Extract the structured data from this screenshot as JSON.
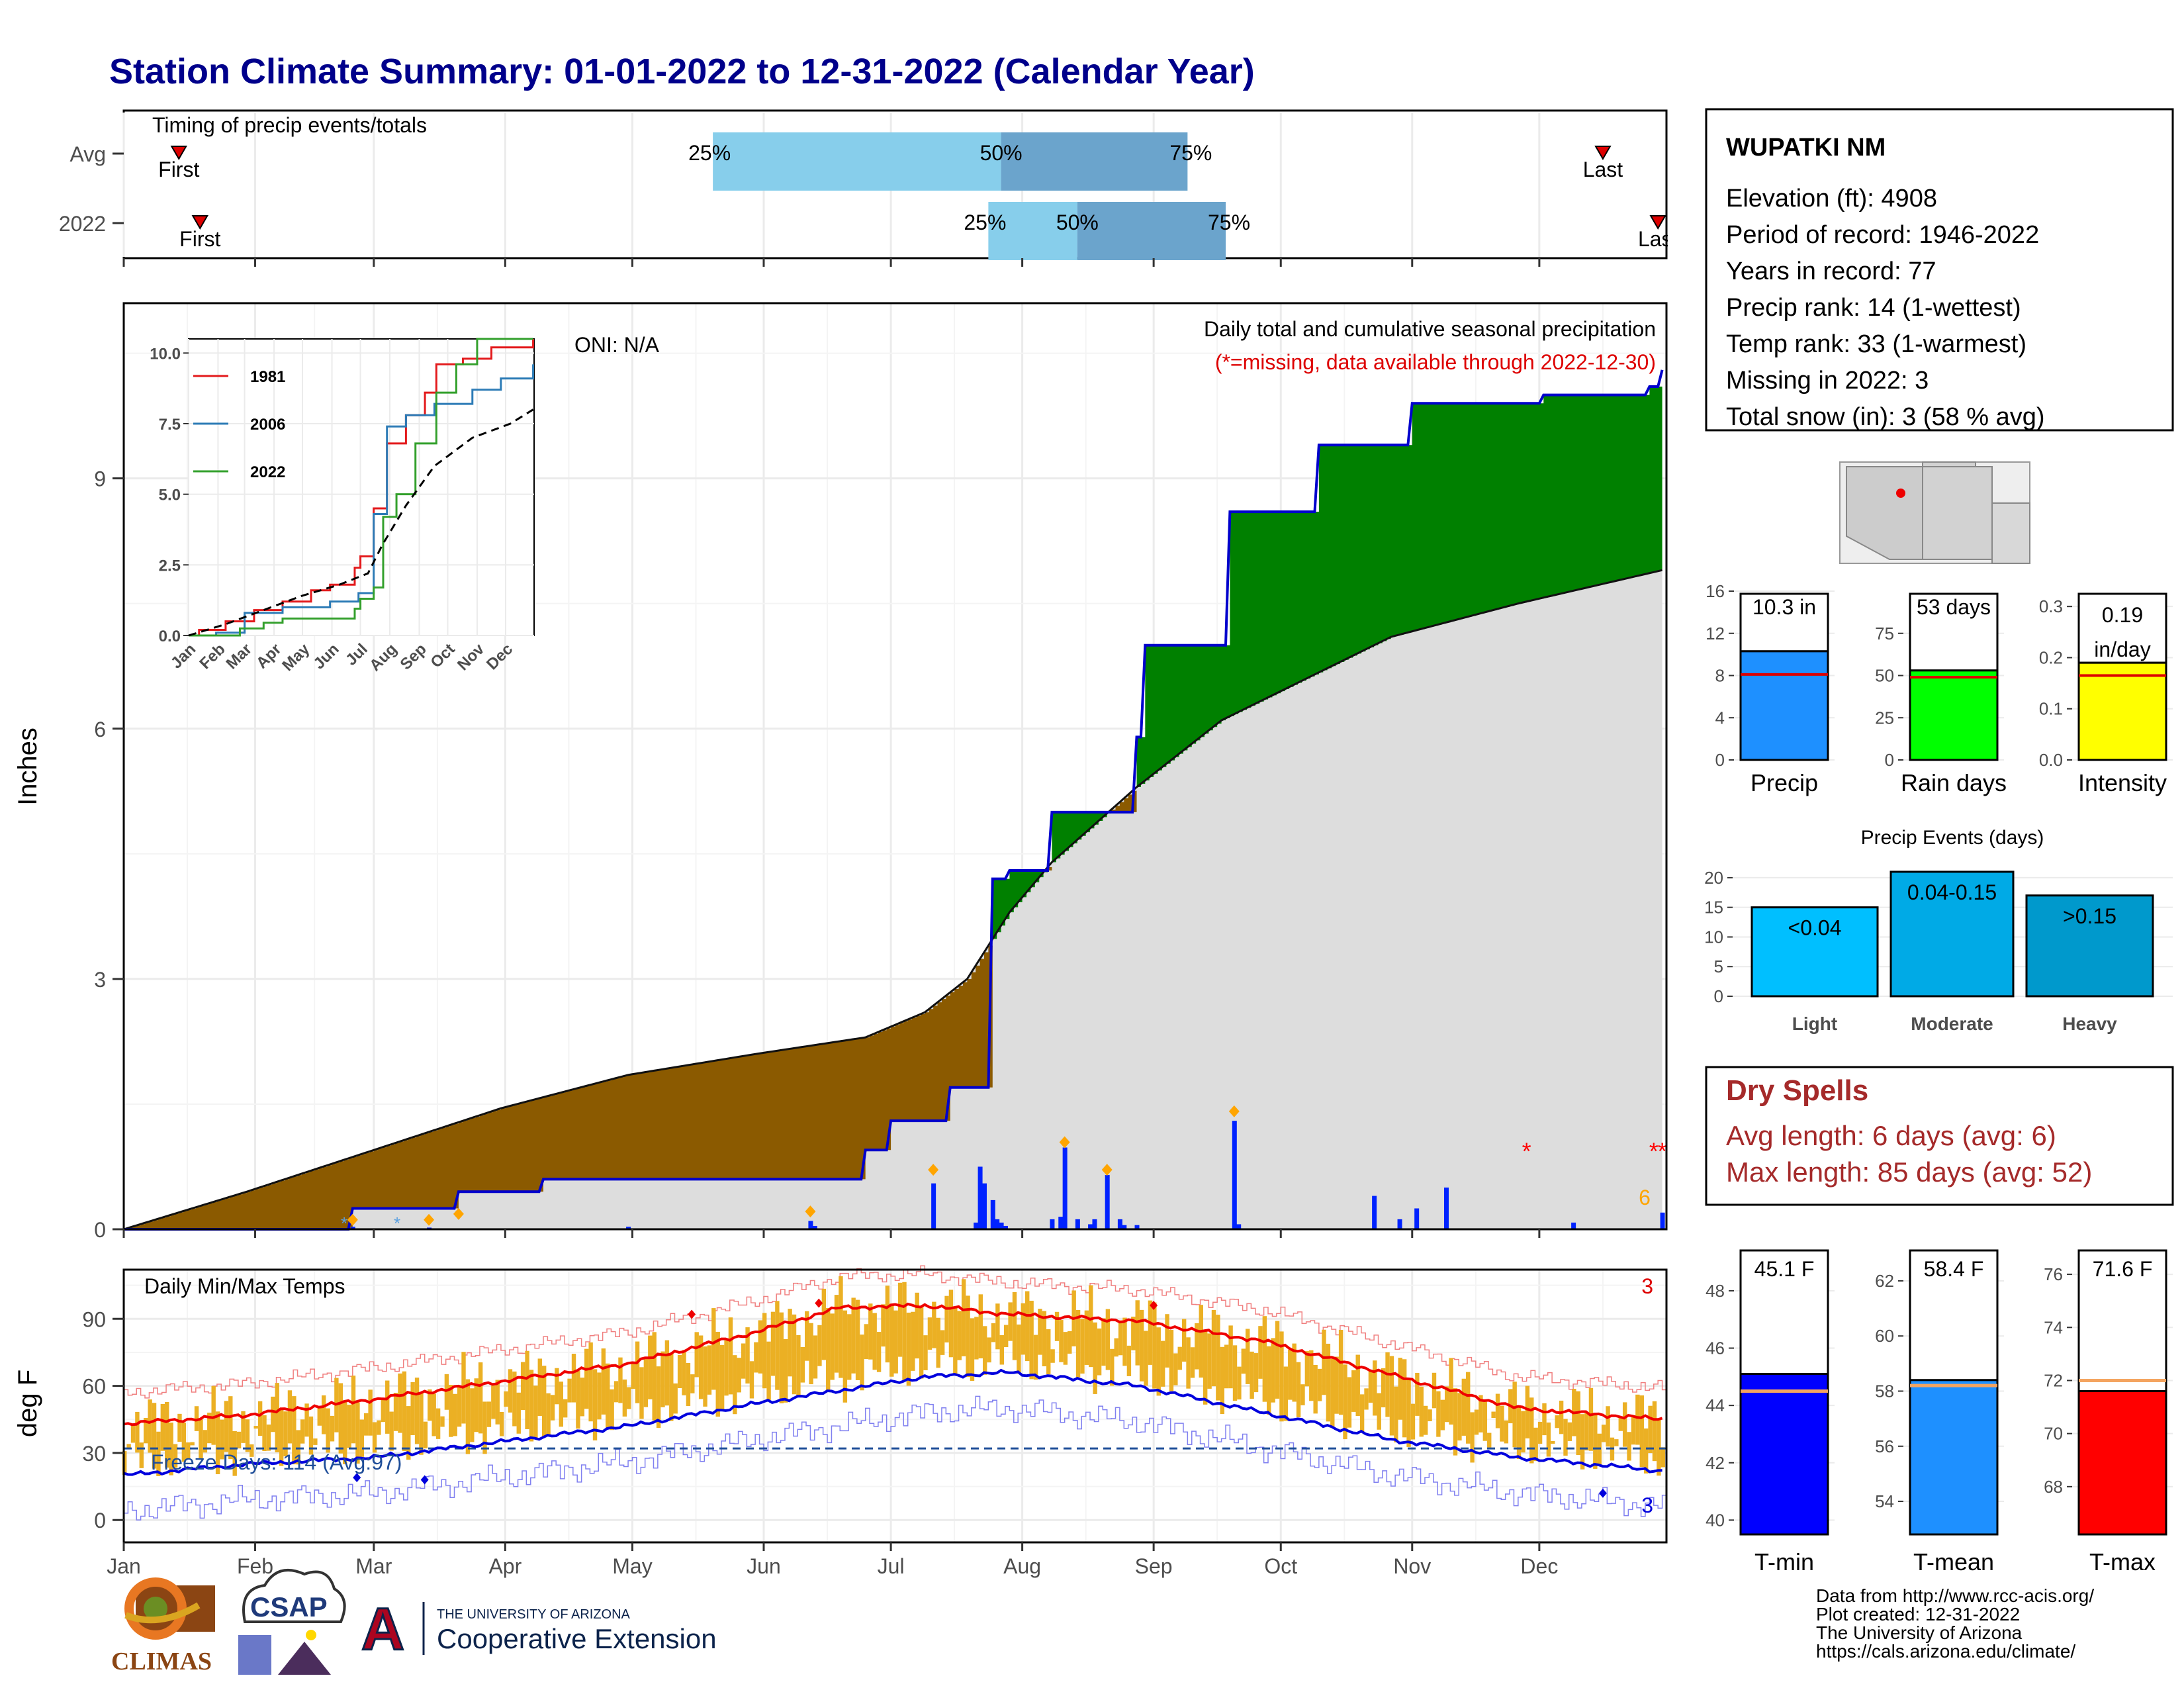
{
  "title": "Station Climate Summary: 01-01-2022 to 12-31-2022 (Calendar Year)",
  "months": [
    "Jan",
    "Feb",
    "Mar",
    "Apr",
    "May",
    "Jun",
    "Jul",
    "Aug",
    "Sep",
    "Oct",
    "Nov",
    "Dec"
  ],
  "timing": {
    "label": "Timing of precip events/totals",
    "rows": [
      {
        "name": "Avg",
        "first_label": "First",
        "last_label": "Last",
        "first_day": 14,
        "last_day": 350,
        "q25_day": 140,
        "q50_day": 208,
        "q75_day": 252,
        "q25_label": "25%",
        "q50_label": "50%",
        "q75_label": "75%"
      },
      {
        "name": "2022",
        "first_label": "First",
        "last_label": "Last",
        "first_day": 19,
        "last_day": 363,
        "q25_day": 205,
        "q50_day": 226,
        "q75_day": 261,
        "q25_label": "25%",
        "q50_label": "50%",
        "q75_label": "75%"
      }
    ]
  },
  "precip_panel": {
    "ylabel": "Inches",
    "yticks": [
      0,
      3,
      6,
      9
    ],
    "ymax": 11.1,
    "oni": "ONI: N/A",
    "subtitle": "Daily total and cumulative seasonal precipitation",
    "missing_note": "(*=missing, data available through 2022-12-30)",
    "missing_count": "6",
    "colors": {
      "dry": "#8B5A00",
      "wet": "#008000",
      "avg_fill": "#DDDDDD",
      "line": "#0000CC",
      "bar": "#0022FF",
      "event": "#FFA500",
      "missing": "#FF0000"
    }
  },
  "inset": {
    "yticks": [
      "0.0",
      "2.5",
      "5.0",
      "7.5",
      "10.0"
    ],
    "months": [
      "Jan",
      "Feb",
      "Mar",
      "Apr",
      "May",
      "Jun",
      "Jul",
      "Aug",
      "Sep",
      "Oct",
      "Nov",
      "Dec"
    ],
    "legend": [
      {
        "name": "1981",
        "color": "#E31A1C"
      },
      {
        "name": "2006",
        "color": "#2C7BB6"
      },
      {
        "name": "2022",
        "color": "#33A02C"
      }
    ]
  },
  "temp_panel": {
    "ylabel": "deg F",
    "yticks": [
      0,
      30,
      60,
      90
    ],
    "title": "Daily Min/Max Temps",
    "freeze_label": "Freeze Days: 114 (Avg:97)",
    "top_count": "3",
    "bottom_count": "3",
    "colors": {
      "bar": "#EBB024",
      "max": "#EE0000",
      "min": "#0000DD",
      "freeze": "#1F4E99"
    }
  },
  "station": {
    "name": "WUPATKI NM",
    "lines": [
      "Elevation (ft): 4908",
      "Period of record: 1946-2022",
      "Years in record: 77",
      "Precip rank: 14 (1-wettest)",
      "Temp rank: 33 (1-warmest)",
      "Missing in 2022: 3",
      "Total snow (in): 3 (58 % avg)"
    ]
  },
  "summary_bars": [
    {
      "name": "Precip",
      "label": "10.3 in",
      "value": 10.3,
      "avg": 8.1,
      "max": 16,
      "ticks": [
        0,
        4,
        8,
        12,
        16
      ],
      "color": "#1E90FF"
    },
    {
      "name": "Rain days",
      "label": "53 days",
      "value": 53,
      "avg": 49,
      "max": 100,
      "ticks": [
        0,
        25,
        50,
        75
      ],
      "color": "#00FF00"
    },
    {
      "name": "Intensity",
      "label": "0.19 in/day",
      "value": 0.19,
      "avg": 0.165,
      "max": 0.33,
      "ticks": [
        "0.0",
        "0.1",
        "0.2",
        "0.3"
      ],
      "color": "#FFFF00"
    }
  ],
  "events": {
    "title": "Precip Events (days)",
    "yticks": [
      0,
      5,
      10,
      15,
      20
    ],
    "bars": [
      {
        "name": "Light",
        "label": "<0.04",
        "value": 15,
        "color": "#00BFFF"
      },
      {
        "name": "Moderate",
        "label": "0.04-0.15",
        "value": 21,
        "color": "#00AAE6"
      },
      {
        "name": "Heavy",
        "label": ">0.15",
        "value": 17,
        "color": "#0099CC"
      }
    ]
  },
  "dry_spells": {
    "title": "Dry Spells",
    "avg": "Avg length: 6 days (avg: 6)",
    "max": "Max length: 85 days (avg: 52)"
  },
  "temp_bars": [
    {
      "name": "T-min",
      "label": "45.1 F",
      "value": 45.1,
      "avg": 44.5,
      "min": 39.5,
      "max": 49.5,
      "ticks": [
        40,
        42,
        44,
        46,
        48
      ],
      "color": "#0000FF"
    },
    {
      "name": "T-mean",
      "label": "58.4 F",
      "value": 58.4,
      "avg": 58.2,
      "min": 52.8,
      "max": 63.2,
      "ticks": [
        54,
        56,
        58,
        60,
        62
      ],
      "color": "#1E90FF"
    },
    {
      "name": "T-max",
      "label": "71.6 F",
      "value": 71.6,
      "avg": 72.0,
      "min": 66.2,
      "max": 77.0,
      "ticks": [
        68,
        70,
        72,
        74,
        76
      ],
      "color": "#FF0000"
    }
  ],
  "credits": [
    "Data from http://www.rcc-acis.org/",
    "Plot created: 12-31-2022",
    "The University of Arizona",
    "https://cals.arizona.edu/climate/"
  ],
  "logos": {
    "climas": "CLIMAS",
    "csap": "CSAP",
    "ua_small": "THE UNIVERSITY OF ARIZONA",
    "ua_big": "Cooperative Extension",
    "ua_letter": "A"
  },
  "chart_data": [
    {
      "type": "area",
      "title": "Daily total and cumulative seasonal precipitation",
      "ylabel": "Inches",
      "ylim": [
        0,
        11.1
      ],
      "x_unit": "day of year 2022",
      "cumulative_2022": {
        "x": [
          1,
          55,
          80,
          100,
          176,
          182,
          196,
          206,
          210,
          220,
          240,
          242,
          250,
          262,
          283,
          305,
          336,
          361,
          364
        ],
        "y": [
          0,
          0.25,
          0.45,
          0.6,
          0.95,
          1.3,
          1.7,
          4.2,
          4.3,
          5.0,
          5.9,
          7.0,
          7.0,
          8.6,
          9.4,
          9.9,
          10.0,
          10.1,
          10.3
        ]
      },
      "cumulative_avg": {
        "x": [
          1,
          30,
          60,
          90,
          120,
          150,
          176,
          190,
          200,
          210,
          220,
          240,
          260,
          280,
          300,
          330,
          364
        ],
        "y": [
          0,
          0.45,
          0.95,
          1.45,
          1.85,
          2.1,
          2.3,
          2.6,
          3.0,
          3.8,
          4.4,
          5.3,
          6.1,
          6.6,
          7.1,
          7.5,
          7.9
        ]
      },
      "daily_bars": {
        "x": [
          55,
          73,
          120,
          163,
          164,
          192,
          202,
          203,
          204,
          206,
          207,
          208,
          209,
          220,
          222,
          223,
          226,
          229,
          230,
          233,
          236,
          237,
          240,
          263,
          264,
          296,
          302,
          306,
          313,
          343,
          364
        ],
        "y": [
          0.03,
          0.02,
          0.03,
          0.1,
          0.04,
          0.55,
          0.08,
          0.75,
          0.55,
          0.35,
          0.12,
          0.08,
          0.04,
          0.12,
          0.15,
          0.98,
          0.12,
          0.06,
          0.12,
          0.65,
          0.12,
          0.05,
          0.05,
          1.3,
          0.06,
          0.4,
          0.12,
          0.25,
          0.5,
          0.08,
          0.2
        ]
      },
      "event_markers": {
        "x": [
          55,
          73,
          80,
          163,
          192,
          223,
          233,
          263
        ],
        "y": [
          0.05,
          0.05,
          0.12,
          0.15,
          0.65,
          0.98,
          0.65,
          1.35
        ]
      },
      "missing_days": [
        332,
        362,
        364
      ]
    },
    {
      "type": "line",
      "title": "Daily Min/Max Temps",
      "ylabel": "deg F",
      "ylim": [
        -10,
        112
      ],
      "avg_max": {
        "x": [
          1,
          30,
          60,
          90,
          120,
          150,
          170,
          190,
          210,
          240,
          270,
          300,
          330,
          364
        ],
        "y": [
          43,
          47,
          54,
          62,
          70,
          84,
          95,
          96,
          92,
          89,
          80,
          65,
          50,
          45
        ]
      },
      "avg_min": {
        "x": [
          1,
          30,
          60,
          90,
          120,
          150,
          170,
          190,
          210,
          240,
          270,
          300,
          330,
          364
        ],
        "y": [
          20,
          25,
          28,
          35,
          42,
          52,
          58,
          64,
          66,
          60,
          48,
          36,
          28,
          22
        ]
      },
      "freeze_line": 32
    }
  ]
}
